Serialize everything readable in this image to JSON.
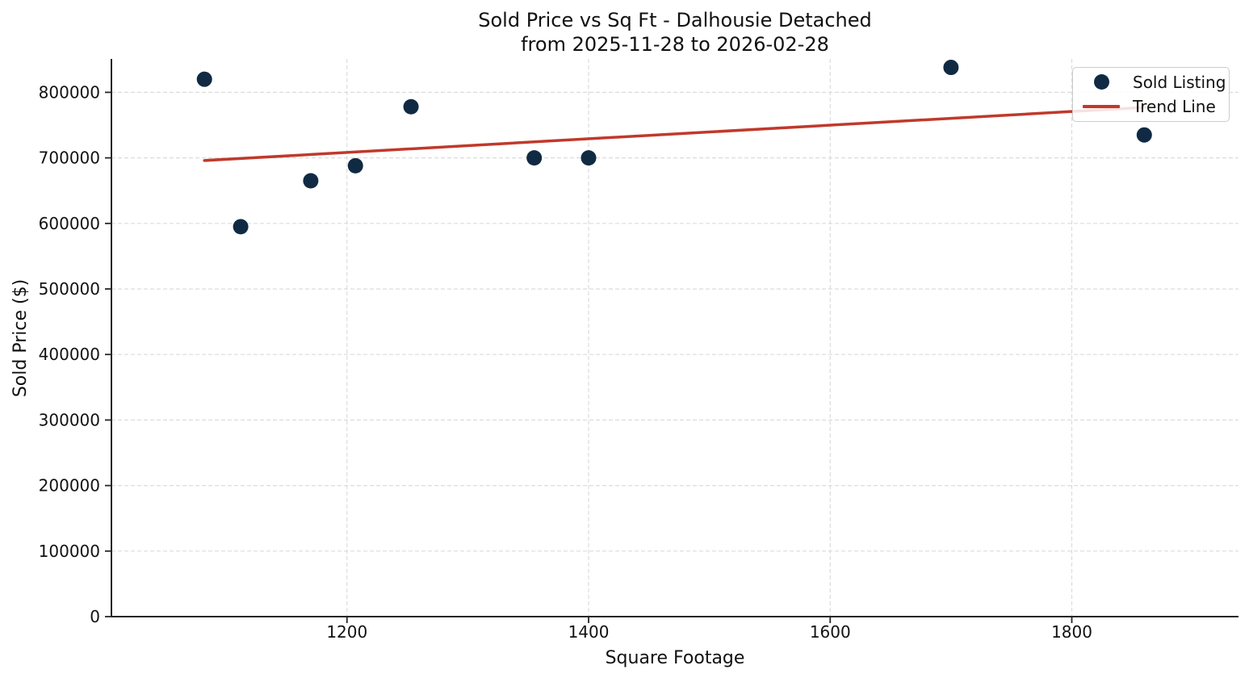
{
  "figure": {
    "title": "Sold Price vs Sq Ft - Dalhousie Detached",
    "subtitle": "from 2025-11-28 to 2026-02-28"
  },
  "chart_data": {
    "type": "scatter",
    "title": "Sold Price vs Sq Ft - Dalhousie Detached",
    "subtitle": "from 2025-11-28 to 2026-02-28",
    "xlabel": "Square Footage",
    "ylabel": "Sold Price ($)",
    "xlim": [
      1005,
      1938
    ],
    "ylim": [
      0,
      851000
    ],
    "x_ticks": [
      1200,
      1400,
      1600,
      1800
    ],
    "y_ticks": [
      0,
      100000,
      200000,
      300000,
      400000,
      500000,
      600000,
      700000,
      800000
    ],
    "grid": true,
    "legend_position": "upper right",
    "series": [
      {
        "name": "Sold Listing",
        "type": "scatter",
        "color": "#102a43",
        "marker_radius": 9.5,
        "points": [
          [
            1082,
            820000
          ],
          [
            1112,
            595000
          ],
          [
            1170,
            665000
          ],
          [
            1207,
            688000
          ],
          [
            1253,
            778000
          ],
          [
            1355,
            700000
          ],
          [
            1400,
            700000
          ],
          [
            1700,
            838000
          ],
          [
            1860,
            735000
          ]
        ]
      },
      {
        "name": "Trend Line",
        "type": "line",
        "color": "#c0392b",
        "line_width": 3.5,
        "points": [
          [
            1082,
            696000
          ],
          [
            1860,
            777000
          ]
        ]
      }
    ]
  },
  "colors": {
    "grid": "#dcdcdc",
    "spine": "#262626",
    "tick": "#262626",
    "text": "#111111",
    "legend_border": "#cccccc"
  }
}
